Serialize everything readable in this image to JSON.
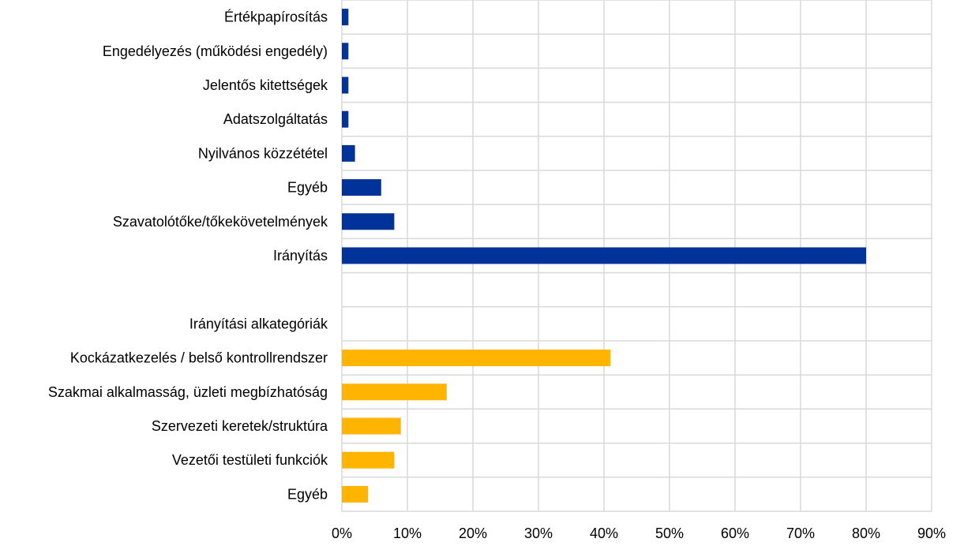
{
  "chart_data": {
    "type": "bar",
    "orientation": "horizontal",
    "title": "",
    "xlabel": "",
    "ylabel": "",
    "xlim": [
      0,
      90
    ],
    "x_ticks": [
      0,
      10,
      20,
      30,
      40,
      50,
      60,
      70,
      80,
      90
    ],
    "x_tick_labels": [
      "0%",
      "10%",
      "20%",
      "30%",
      "40%",
      "50%",
      "60%",
      "70%",
      "80%",
      "90%"
    ],
    "grid": true,
    "legend": "none",
    "colors": {
      "primary": "#003399",
      "sub": "#FFB400"
    },
    "categories": [
      "Értékpapírosítás",
      "Engedélyezés (működési engedély)",
      "Jelentős kitettségek",
      "Adatszolgáltatás",
      "Nyilvános közzététel",
      "Egyéb",
      "Szavatolótőke/tőkekövetelmények",
      "Irányítás",
      "",
      "Irányítási alkategóriák",
      "Kockázatkezelés / belső kontrollrendszer",
      "Szakmai alkalmasság, üzleti megbízhatóság",
      "Szervezeti keretek/struktúra",
      "Vezetői testületi funkciók",
      "Egyéb"
    ],
    "values": [
      1,
      1,
      1,
      1,
      2,
      6,
      8,
      80,
      null,
      null,
      41,
      16,
      9,
      8,
      4
    ],
    "bar_color_keys": [
      "primary",
      "primary",
      "primary",
      "primary",
      "primary",
      "primary",
      "primary",
      "primary",
      null,
      null,
      "sub",
      "sub",
      "sub",
      "sub",
      "sub"
    ]
  }
}
